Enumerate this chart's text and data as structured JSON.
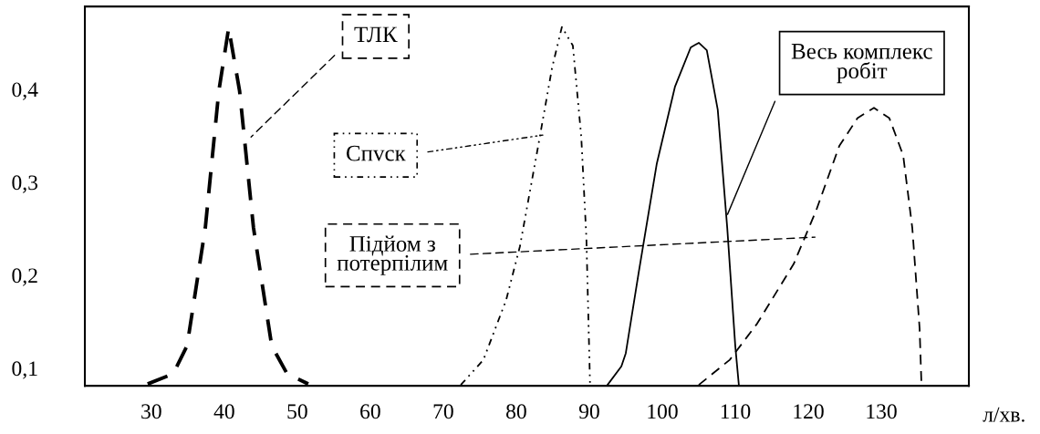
{
  "chart_data": {
    "type": "line",
    "xlabel": "л/хв.",
    "xlim": [
      20.9,
      142
    ],
    "ylim": [
      0.081,
      0.489
    ],
    "xticks": [
      30,
      40,
      50,
      60,
      70,
      80,
      90,
      100,
      110,
      120,
      130
    ],
    "yticks": [
      {
        "value": 0.1,
        "label": "0,1"
      },
      {
        "value": 0.2,
        "label": "0,2"
      },
      {
        "value": 0.3,
        "label": "0,3"
      },
      {
        "value": 0.4,
        "label": "0,4"
      }
    ],
    "grid": false,
    "legend": false,
    "series": [
      {
        "name": "ТЛК",
        "color": "#000000",
        "line_style": "dashed",
        "x": [
          29.5,
          33,
          34.9,
          37.4,
          39.25,
          40.6,
          42.1,
          44,
          46.5,
          48.6,
          51.5
        ],
        "values": [
          0.083,
          0.094,
          0.124,
          0.251,
          0.398,
          0.466,
          0.398,
          0.251,
          0.124,
          0.094,
          0.083
        ]
      },
      {
        "name": "Спvск",
        "color": "#000000",
        "line_style": "dotted",
        "x": [
          72.4,
          75.5,
          78.6,
          80.5,
          83,
          84.9,
          86.25,
          87.75,
          88.9,
          89.6,
          90.1
        ],
        "values": [
          0.082,
          0.109,
          0.173,
          0.231,
          0.339,
          0.423,
          0.467,
          0.447,
          0.349,
          0.241,
          0.084
        ]
      },
      {
        "name": "Підйом з\nпотерпілим",
        "color": "#000000",
        "line_style": "dashed",
        "x": [
          105,
          109.25,
          113,
          118,
          121.1,
          124.25,
          126.75,
          129,
          131.1,
          133,
          134.25,
          135.25,
          135.5
        ],
        "values": [
          0.082,
          0.109,
          0.148,
          0.212,
          0.27,
          0.339,
          0.369,
          0.38,
          0.369,
          0.329,
          0.251,
          0.143,
          0.084
        ]
      },
      {
        "name": "Весь комплекс\nробіт",
        "color": "#000000",
        "line_style": "solid",
        "x": [
          92.5,
          94.4,
          95,
          96.75,
          99.25,
          101.75,
          103.9,
          105,
          106.1,
          107.6,
          108.9,
          110,
          110.5
        ],
        "values": [
          0.082,
          0.102,
          0.116,
          0.202,
          0.32,
          0.403,
          0.445,
          0.45,
          0.442,
          0.378,
          0.251,
          0.124,
          0.081
        ]
      }
    ]
  }
}
